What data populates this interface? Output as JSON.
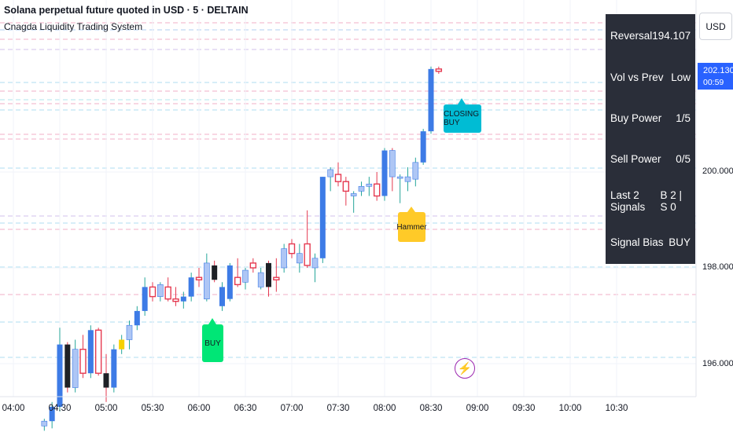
{
  "header": {
    "title": "Solana perpetual future quoted in USD · 5 · DELTAIN",
    "indicator": "Cnagda Liquidity Trading System"
  },
  "stats_panel": {
    "rows": [
      {
        "label": "Reversal",
        "value": "194.107"
      },
      {
        "label": "Vol vs Prev",
        "value": "Low"
      },
      {
        "label": "Buy Power",
        "value": "1/5"
      },
      {
        "label": "Sell Power",
        "value": "0/5"
      },
      {
        "label": "Last 2 Signals",
        "value": "B 2 | S 0"
      },
      {
        "label": "Signal Bias",
        "value": "BUY"
      }
    ]
  },
  "price_axis": {
    "currency": "USD",
    "current_price": "202.1300",
    "countdown": "00:59",
    "ticks": [
      "200.0000",
      "198.0000",
      "196.0000"
    ]
  },
  "time_axis": {
    "ticks": [
      "04:00",
      "04:30",
      "05:00",
      "05:30",
      "06:00",
      "06:30",
      "07:00",
      "07:30",
      "08:00",
      "08:30",
      "09:00",
      "09:30",
      "10:00",
      "10:30"
    ]
  },
  "callouts": {
    "buy": "BUY",
    "hammer": "Hammer",
    "closing_buy": "CLOSING BUY"
  },
  "icons": {
    "bolt": "lightning-bolt-icon"
  },
  "colors": {
    "up_strong": "#3d7be6",
    "up_light": "#aec6f5",
    "down": "#e53950",
    "black": "#1e2126",
    "yellow": "#f6d000",
    "wick_up": "#26a69a",
    "wick_down": "#e53950",
    "price_label": "#2962ff",
    "panel_bg": "#2a2e39"
  },
  "chart_data": {
    "type": "candlestick",
    "interval_minutes": 5,
    "y_axis": {
      "ticks": [
        200,
        198,
        196
      ],
      "range": [
        194.6,
        203.8
      ]
    },
    "x_axis": {
      "start": "04:00",
      "tick_interval": "00:30"
    },
    "candles": [
      {
        "t": "04:20",
        "o": 194.7,
        "h": 194.85,
        "l": 194.6,
        "c": 194.8,
        "color": "up_light"
      },
      {
        "t": "04:25",
        "o": 194.8,
        "h": 195.2,
        "l": 194.65,
        "c": 195.1,
        "color": "up_strong"
      },
      {
        "t": "04:30",
        "o": 195.1,
        "h": 196.75,
        "l": 195.0,
        "c": 196.4,
        "color": "up_strong"
      },
      {
        "t": "04:35",
        "o": 196.4,
        "h": 196.45,
        "l": 195.4,
        "c": 195.5,
        "color": "black"
      },
      {
        "t": "04:40",
        "o": 195.5,
        "h": 196.5,
        "l": 195.4,
        "c": 196.3,
        "color": "up_light"
      },
      {
        "t": "04:45",
        "o": 196.3,
        "h": 196.6,
        "l": 195.7,
        "c": 195.8,
        "color": "down"
      },
      {
        "t": "04:50",
        "o": 195.8,
        "h": 196.8,
        "l": 195.7,
        "c": 196.7,
        "color": "up_strong"
      },
      {
        "t": "04:55",
        "o": 196.7,
        "h": 196.75,
        "l": 195.75,
        "c": 195.8,
        "color": "down"
      },
      {
        "t": "05:00",
        "o": 195.8,
        "h": 196.2,
        "l": 195.2,
        "c": 195.5,
        "color": "black"
      },
      {
        "t": "05:05",
        "o": 195.5,
        "h": 196.4,
        "l": 195.4,
        "c": 196.3,
        "color": "up_strong"
      },
      {
        "t": "05:10",
        "o": 196.3,
        "h": 196.6,
        "l": 196.2,
        "c": 196.5,
        "color": "yellow"
      },
      {
        "t": "05:15",
        "o": 196.5,
        "h": 196.9,
        "l": 196.3,
        "c": 196.8,
        "color": "up_light"
      },
      {
        "t": "05:20",
        "o": 196.8,
        "h": 197.2,
        "l": 196.7,
        "c": 197.1,
        "color": "up_strong"
      },
      {
        "t": "05:25",
        "o": 197.1,
        "h": 197.8,
        "l": 197.0,
        "c": 197.6,
        "color": "up_strong"
      },
      {
        "t": "05:30",
        "o": 197.6,
        "h": 197.7,
        "l": 197.3,
        "c": 197.4,
        "color": "down"
      },
      {
        "t": "05:35",
        "o": 197.4,
        "h": 197.7,
        "l": 197.3,
        "c": 197.65,
        "color": "up_light"
      },
      {
        "t": "05:40",
        "o": 197.6,
        "h": 197.8,
        "l": 197.3,
        "c": 197.35,
        "color": "down"
      },
      {
        "t": "05:45",
        "o": 197.35,
        "h": 197.6,
        "l": 197.2,
        "c": 197.3,
        "color": "down"
      },
      {
        "t": "05:50",
        "o": 197.3,
        "h": 197.5,
        "l": 197.15,
        "c": 197.4,
        "color": "up_strong"
      },
      {
        "t": "05:55",
        "o": 197.4,
        "h": 197.9,
        "l": 197.3,
        "c": 197.8,
        "color": "up_strong"
      },
      {
        "t": "06:00",
        "o": 197.8,
        "h": 198.0,
        "l": 197.6,
        "c": 197.75,
        "color": "down"
      },
      {
        "t": "06:05",
        "o": 197.35,
        "h": 198.3,
        "l": 197.3,
        "c": 198.1,
        "color": "up_light"
      },
      {
        "t": "06:10",
        "o": 198.05,
        "h": 198.15,
        "l": 197.7,
        "c": 197.75,
        "color": "black"
      },
      {
        "t": "06:15",
        "o": 197.2,
        "h": 197.7,
        "l": 197.1,
        "c": 197.6,
        "color": "up_strong"
      },
      {
        "t": "06:20",
        "o": 197.35,
        "h": 198.1,
        "l": 197.3,
        "c": 198.05,
        "color": "up_strong"
      },
      {
        "t": "06:25",
        "o": 197.8,
        "h": 198.2,
        "l": 197.6,
        "c": 197.65,
        "color": "down"
      },
      {
        "t": "06:30",
        "o": 197.7,
        "h": 198.0,
        "l": 197.55,
        "c": 197.95,
        "color": "up_light"
      },
      {
        "t": "06:35",
        "o": 198.1,
        "h": 198.2,
        "l": 197.9,
        "c": 198.0,
        "color": "down"
      },
      {
        "t": "06:40",
        "o": 197.6,
        "h": 198.0,
        "l": 197.55,
        "c": 197.9,
        "color": "up_light"
      },
      {
        "t": "06:45",
        "o": 198.1,
        "h": 198.15,
        "l": 197.4,
        "c": 197.6,
        "color": "black"
      },
      {
        "t": "06:50",
        "o": 197.8,
        "h": 198.2,
        "l": 197.5,
        "c": 197.75,
        "color": "down"
      },
      {
        "t": "06:55",
        "o": 198.0,
        "h": 198.5,
        "l": 197.9,
        "c": 198.4,
        "color": "up_light"
      },
      {
        "t": "07:00",
        "o": 198.5,
        "h": 198.6,
        "l": 198.2,
        "c": 198.3,
        "color": "down"
      },
      {
        "t": "07:05",
        "o": 198.1,
        "h": 198.5,
        "l": 197.9,
        "c": 198.3,
        "color": "up_light"
      },
      {
        "t": "07:10",
        "o": 198.5,
        "h": 199.2,
        "l": 198.0,
        "c": 198.05,
        "color": "down"
      },
      {
        "t": "07:15",
        "o": 198.0,
        "h": 198.3,
        "l": 197.7,
        "c": 198.2,
        "color": "up_light"
      },
      {
        "t": "07:20",
        "o": 198.2,
        "h": 199.9,
        "l": 198.1,
        "c": 199.9,
        "color": "up_strong"
      },
      {
        "t": "07:25",
        "o": 199.9,
        "h": 200.1,
        "l": 199.6,
        "c": 200.05,
        "color": "up_light"
      },
      {
        "t": "07:30",
        "o": 199.95,
        "h": 200.2,
        "l": 199.7,
        "c": 199.8,
        "color": "down"
      },
      {
        "t": "07:35",
        "o": 199.8,
        "h": 199.9,
        "l": 199.3,
        "c": 199.6,
        "color": "down"
      },
      {
        "t": "07:40",
        "o": 199.5,
        "h": 199.6,
        "l": 199.15,
        "c": 199.55,
        "color": "up_light"
      },
      {
        "t": "07:45",
        "o": 199.6,
        "h": 199.8,
        "l": 199.5,
        "c": 199.7,
        "color": "up_light"
      },
      {
        "t": "07:50",
        "o": 199.7,
        "h": 199.9,
        "l": 199.5,
        "c": 199.75,
        "color": "up_light"
      },
      {
        "t": "07:55",
        "o": 199.75,
        "h": 200.0,
        "l": 199.4,
        "c": 199.5,
        "color": "down"
      },
      {
        "t": "08:00",
        "o": 199.5,
        "h": 200.5,
        "l": 199.4,
        "c": 200.45,
        "color": "up_strong"
      },
      {
        "t": "08:05",
        "o": 200.45,
        "h": 200.5,
        "l": 199.6,
        "c": 199.9,
        "color": "up_light"
      },
      {
        "t": "08:10",
        "o": 199.9,
        "h": 199.95,
        "l": 199.35,
        "c": 199.9,
        "color": "up_light"
      },
      {
        "t": "08:15",
        "o": 199.8,
        "h": 200.1,
        "l": 199.6,
        "c": 199.9,
        "color": "up_light"
      },
      {
        "t": "08:20",
        "o": 199.85,
        "h": 200.3,
        "l": 199.7,
        "c": 200.2,
        "color": "up_light"
      },
      {
        "t": "08:25",
        "o": 200.2,
        "h": 200.9,
        "l": 200.15,
        "c": 200.85,
        "color": "up_strong"
      },
      {
        "t": "08:30",
        "o": 200.85,
        "h": 202.2,
        "l": 200.8,
        "c": 202.15,
        "color": "up_strong"
      },
      {
        "t": "08:35",
        "o": 202.15,
        "h": 202.2,
        "l": 202.05,
        "c": 202.13,
        "color": "down"
      }
    ]
  }
}
